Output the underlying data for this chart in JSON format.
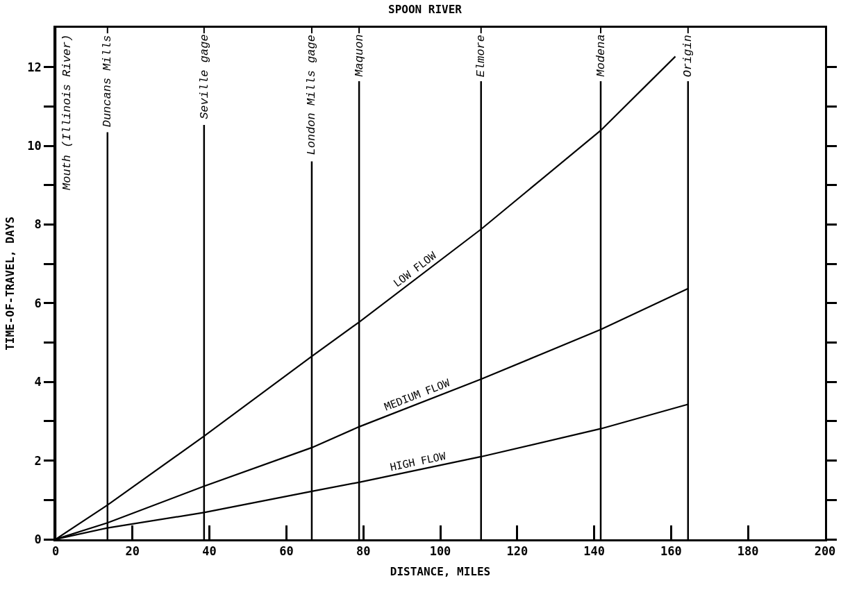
{
  "chart_data": {
    "type": "line",
    "title": "SPOON RIVER",
    "xlabel": "DISTANCE, MILES",
    "ylabel": "TIME-OF-TRAVEL, DAYS",
    "xlim": [
      0,
      200
    ],
    "xticks": [
      0,
      20,
      40,
      60,
      80,
      100,
      120,
      140,
      160,
      180,
      200
    ],
    "ylim": [
      0,
      13
    ],
    "yticks": [
      0,
      {
        "value": 1,
        "label": null
      },
      2,
      {
        "value": 3,
        "label": null
      },
      4,
      {
        "value": 5,
        "label": null
      },
      6,
      {
        "value": 7,
        "label": null
      },
      8,
      {
        "value": 9,
        "label": null
      },
      10,
      {
        "value": 11,
        "label": null
      },
      12
    ],
    "legend": false,
    "marker": "none",
    "line_style": "solid",
    "series": [
      {
        "name": "LOW FLOW",
        "color": "#000000",
        "x": [
          0,
          13.5,
          38.6,
          66.6,
          78.9,
          110.6,
          141.7,
          161.1
        ],
        "values": [
          0,
          0.87,
          2.62,
          4.65,
          5.52,
          7.88,
          10.39,
          12.27
        ]
      },
      {
        "name": "MEDIUM FLOW",
        "color": "#000000",
        "x": [
          0,
          13.5,
          38.6,
          66.6,
          78.9,
          110.6,
          141.7,
          164.4
        ],
        "values": [
          0,
          0.42,
          1.35,
          2.33,
          2.86,
          4.07,
          5.33,
          6.37
        ]
      },
      {
        "name": "HIGH FLOW",
        "color": "#000000",
        "x": [
          0,
          13.5,
          38.6,
          66.6,
          78.9,
          110.6,
          141.7,
          164.4
        ],
        "values": [
          0,
          0.29,
          0.68,
          1.22,
          1.45,
          2.1,
          2.81,
          3.43
        ]
      }
    ],
    "ref_lines": [
      {
        "axis": "x",
        "value": 0,
        "label": "Mouth (Illinois River)",
        "color": "#000000"
      },
      {
        "axis": "x",
        "value": 13.5,
        "label": "Duncans Mills",
        "color": "#000000"
      },
      {
        "axis": "x",
        "value": 38.6,
        "label": "Seville gage",
        "color": "#000000"
      },
      {
        "axis": "x",
        "value": 66.6,
        "label": "London Mills gage",
        "color": "#000000"
      },
      {
        "axis": "x",
        "value": 78.9,
        "label": "Maquon",
        "color": "#000000"
      },
      {
        "axis": "x",
        "value": 110.6,
        "label": "Elmore",
        "color": "#000000"
      },
      {
        "axis": "x",
        "value": 141.7,
        "label": "Modena",
        "color": "#000000"
      },
      {
        "axis": "x",
        "value": 164.4,
        "label": "Origin",
        "color": "#000000"
      }
    ]
  }
}
